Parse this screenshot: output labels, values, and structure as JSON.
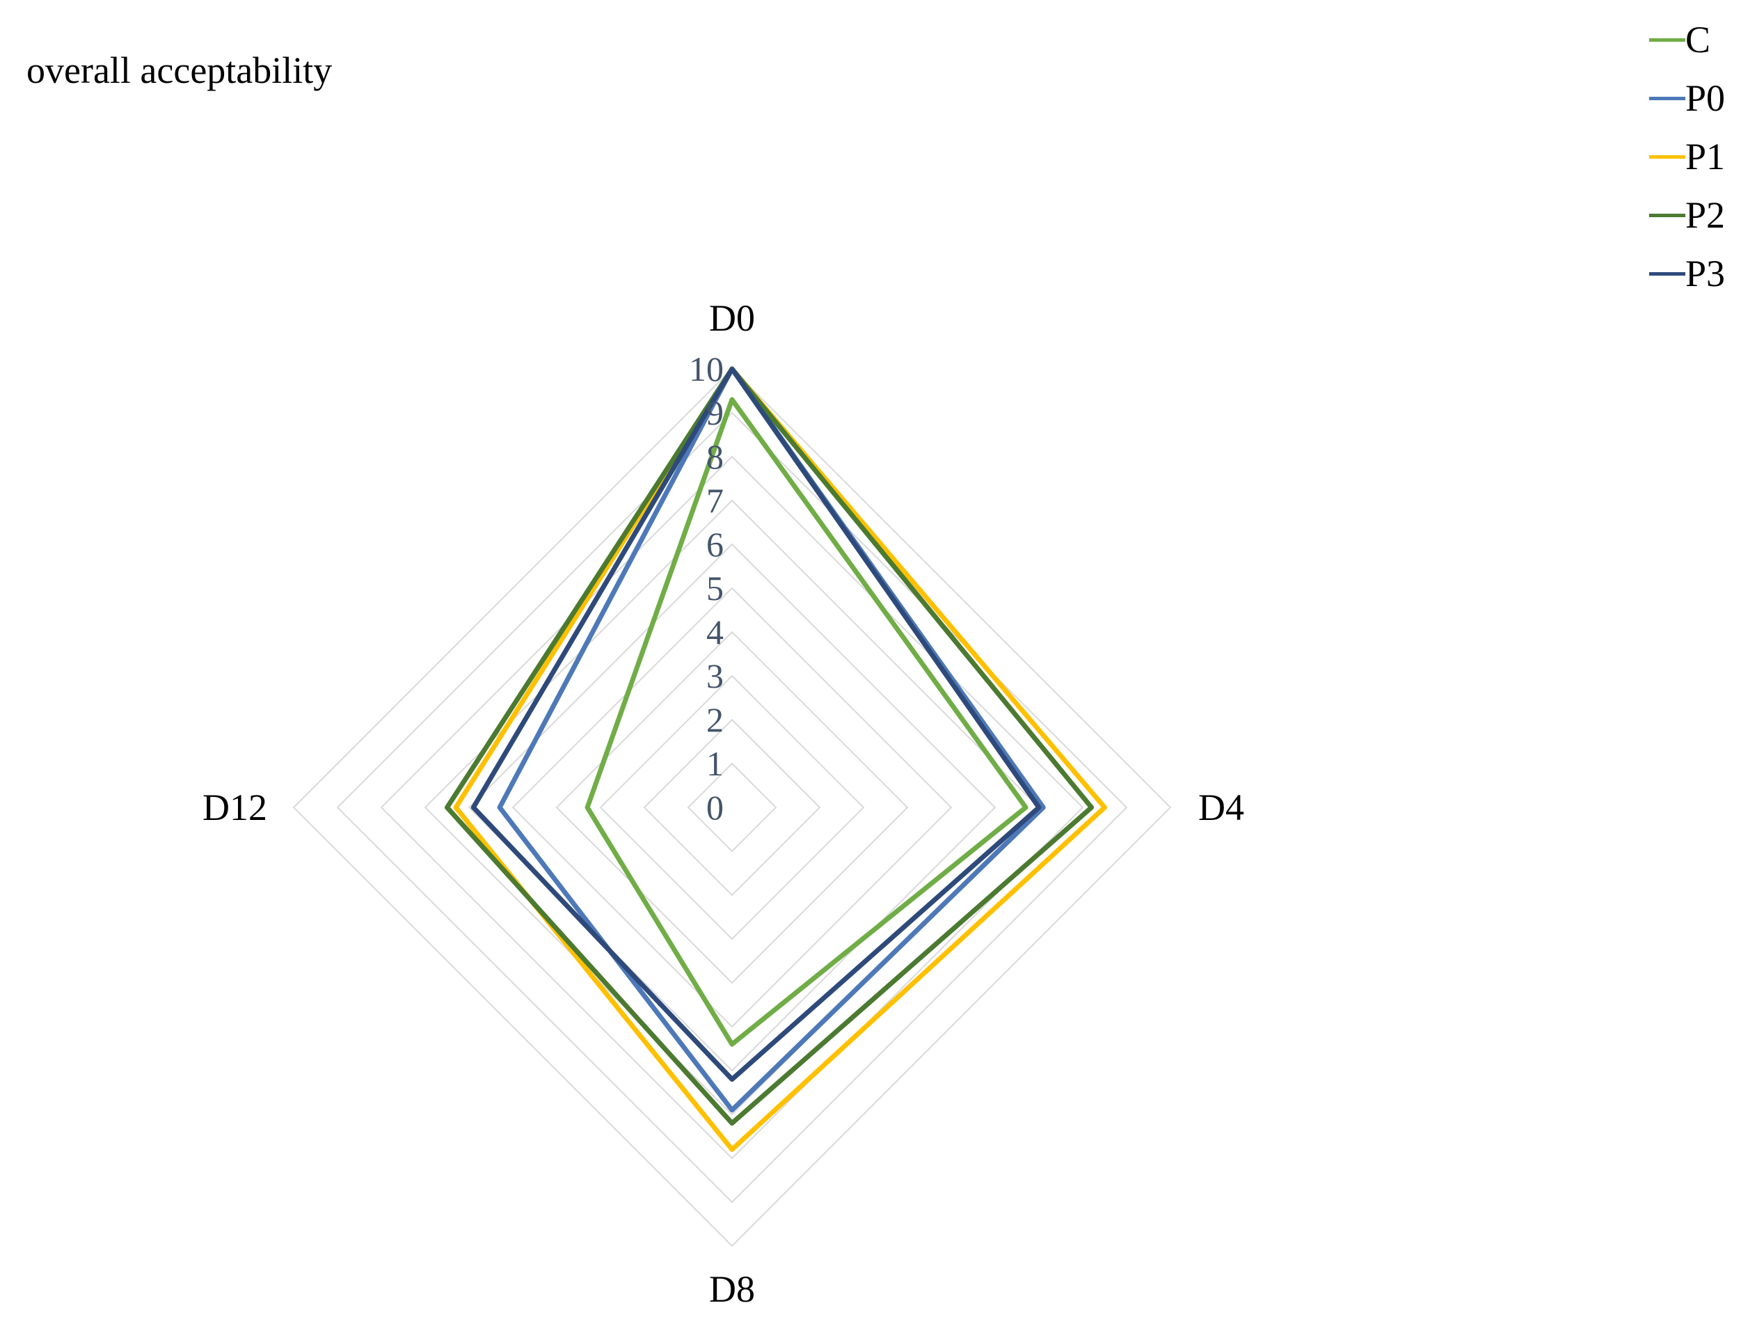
{
  "chart_data": {
    "type": "radar",
    "title": "overall acceptability",
    "axes": [
      "D0",
      "D4",
      "D8",
      "D12"
    ],
    "rlim": [
      0,
      10
    ],
    "ticks": [
      "0",
      "1",
      "2",
      "3",
      "4",
      "5",
      "6",
      "7",
      "8",
      "9",
      "10"
    ],
    "grid": true,
    "legend_position": "top-right",
    "series": [
      {
        "name": "C",
        "color": "#70ad47",
        "values": [
          9.3,
          6.7,
          5.4,
          3.3
        ]
      },
      {
        "name": "P0",
        "color": "#4e79b8",
        "values": [
          10.0,
          7.1,
          6.9,
          5.3
        ]
      },
      {
        "name": "P1",
        "color": "#ffc000",
        "values": [
          10.0,
          8.5,
          7.8,
          6.3
        ]
      },
      {
        "name": "P2",
        "color": "#4b7a30",
        "values": [
          10.0,
          8.2,
          7.2,
          6.5
        ]
      },
      {
        "name": "P3",
        "color": "#2e4a7a",
        "values": [
          10.0,
          7.0,
          6.2,
          5.9
        ]
      }
    ]
  }
}
